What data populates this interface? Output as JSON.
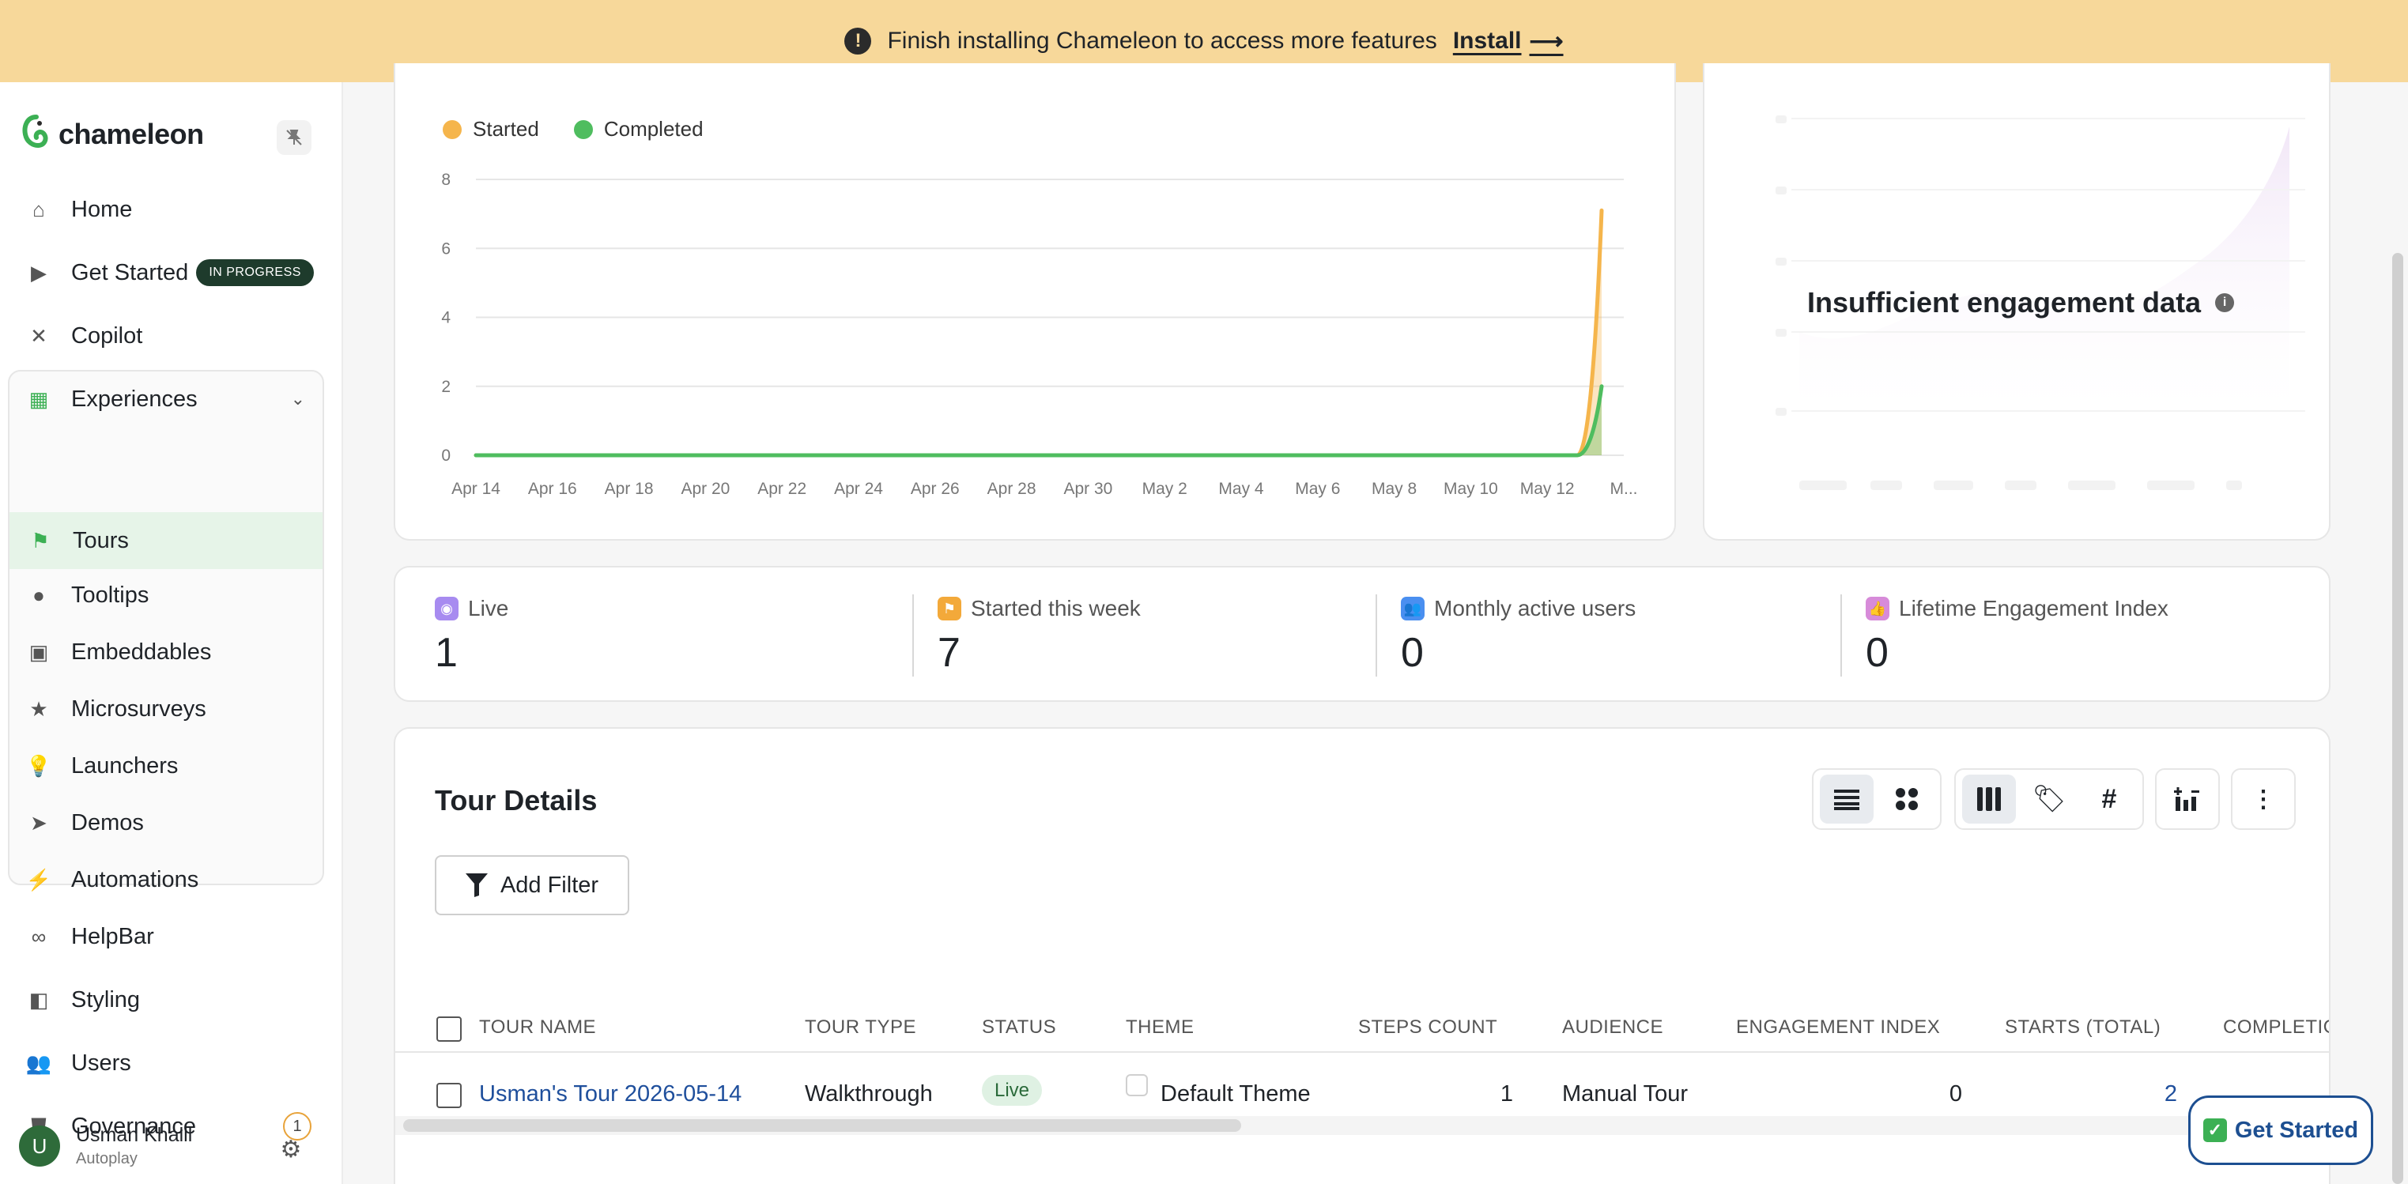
{
  "banner": {
    "message": "Finish installing Chameleon to access more features",
    "install_label": "Install",
    "arrow": "⟶"
  },
  "sidebar": {
    "brand": "chameleon",
    "items": [
      {
        "label": "Home",
        "icon": "home-icon"
      },
      {
        "label": "Get Started",
        "icon": "play-circle-icon",
        "badge": "IN PROGRESS"
      },
      {
        "label": "Copilot",
        "icon": "butterfly-icon"
      },
      {
        "label": "Experiences",
        "icon": "grid-icon"
      },
      {
        "label": "Tours",
        "icon": "signpost-icon"
      },
      {
        "label": "Tooltips",
        "icon": "tooltip-icon"
      },
      {
        "label": "Embeddables",
        "icon": "embed-icon"
      },
      {
        "label": "Microsurveys",
        "icon": "star-icon"
      },
      {
        "label": "Launchers",
        "icon": "bulb-icon"
      },
      {
        "label": "Demos",
        "icon": "cursor-icon"
      },
      {
        "label": "Automations",
        "icon": "bolt-icon"
      },
      {
        "label": "HelpBar",
        "icon": "binoculars-icon"
      },
      {
        "label": "Styling",
        "icon": "palette-icon"
      },
      {
        "label": "Users",
        "icon": "users-icon"
      },
      {
        "label": "Governance",
        "icon": "shield-icon",
        "count": "1"
      }
    ],
    "user": {
      "initial": "U",
      "name": "Usman Khalil",
      "subtitle": "Autoplay"
    }
  },
  "chart_data": {
    "type": "area",
    "x": [
      "Apr 14",
      "Apr 16",
      "Apr 18",
      "Apr 20",
      "Apr 22",
      "Apr 24",
      "Apr 26",
      "Apr 28",
      "Apr 30",
      "May 2",
      "May 4",
      "May 6",
      "May 8",
      "May 10",
      "May 12",
      "M..."
    ],
    "yticks": [
      "8",
      "6",
      "4",
      "2",
      "0"
    ],
    "ylim": [
      0,
      8
    ],
    "series": [
      {
        "name": "Started",
        "color": "#f5b54c",
        "values": [
          0,
          0,
          0,
          0,
          0,
          0,
          0,
          0,
          0,
          0,
          0,
          0,
          0,
          0,
          0,
          7.1
        ]
      },
      {
        "name": "Completed",
        "color": "#4fbd5f",
        "values": [
          0,
          0,
          0,
          0,
          0,
          0,
          0,
          0,
          0,
          0,
          0,
          0,
          0,
          0,
          0,
          2
        ]
      }
    ],
    "legend": "top-left",
    "grid": true
  },
  "engagement": {
    "message": "Insufficient engagement data",
    "info_icon": "i"
  },
  "stats": [
    {
      "label": "Live",
      "value": "1",
      "color": "#a78bf0",
      "icon": "live-icon"
    },
    {
      "label": "Started this week",
      "value": "7",
      "color": "#f3a93a",
      "icon": "started-icon"
    },
    {
      "label": "Monthly active users",
      "value": "0",
      "color": "#4a8ff0",
      "icon": "users-icon"
    },
    {
      "label": "Lifetime Engagement Index",
      "value": "0",
      "color": "#d78bd9",
      "icon": "thumbs-up-icon"
    }
  ],
  "table": {
    "title": "Tour Details",
    "add_filter": "Add Filter",
    "columns": [
      "TOUR NAME",
      "TOUR TYPE",
      "STATUS",
      "THEME",
      "STEPS COUNT",
      "AUDIENCE",
      "ENGAGEMENT INDEX",
      "STARTS (TOTAL)",
      "COMPLETIC"
    ],
    "rows": [
      {
        "name": "Usman's Tour 2026-05-14",
        "type": "Walkthrough",
        "status": "Live",
        "theme": "Default Theme",
        "steps": "1",
        "audience": "Manual Tour",
        "engagement": "0",
        "starts": "2"
      }
    ]
  },
  "floating_button": {
    "label": "Get Started",
    "check": "✓"
  }
}
